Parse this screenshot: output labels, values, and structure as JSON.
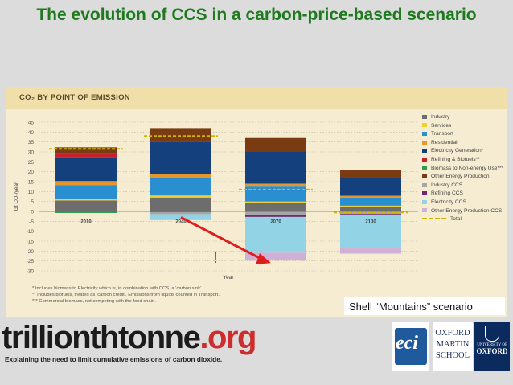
{
  "slide_title": "The evolution of CCS in a carbon-price-based scenario",
  "panel_title": "CO₂ BY POINT OF EMISSION",
  "caption": "Shell “Mountains” scenario",
  "brand": {
    "main": "trillionthtonne",
    "suffix": ".org",
    "tagline": "Explaining the need to limit cumulative emissions of carbon dioxide."
  },
  "logos": {
    "eci": "eci",
    "oxford_martin": [
      "OXFORD",
      "MARTIN",
      "SCHOOL"
    ],
    "oxford_uni": [
      "UNIVERSITY OF",
      "OXFORD"
    ]
  },
  "footnotes": [
    "* Includes biomass to Electricity which is, in combination with CCS, a ‘carbon sink’.",
    "** Includes biofuels, treated as ‘carbon credit’. Emissions from liquids counted in Transport.",
    "*** Commercial biomass, not competing with the food chain."
  ],
  "annotation": "!",
  "colors": {
    "Industry": "#6d6d6d",
    "Services": "#f1cf2f",
    "Transport": "#2a8fd0",
    "Residential": "#e5962d",
    "Electricity Generation*": "#14407d",
    "Refining & Biofuels**": "#c8202a",
    "Biomass to Non-energy Use***": "#2e9b4a",
    "Other Energy Production": "#7a3a12",
    "Industry CCS": "#a6a6a6",
    "Refining CCS": "#6e2a72",
    "Electricity CCS": "#93d3e6",
    "Other Energy Production CCS": "#cfb1d8",
    "Total": "#c9b800"
  },
  "chart_data": {
    "type": "bar",
    "title": "CO₂ BY POINT OF EMISSION",
    "xlabel": "Year",
    "ylabel": "Gt CO₂/year",
    "ylim": [
      -30,
      45
    ],
    "yticks": [
      45,
      40,
      35,
      30,
      25,
      20,
      15,
      10,
      5,
      0,
      -5,
      -10,
      -15,
      -20,
      -25,
      -30
    ],
    "grid": true,
    "legend_position": "right",
    "categories": [
      "2010",
      "2040",
      "2070",
      "2100"
    ],
    "series": [
      {
        "name": "Industry",
        "values": [
          5.5,
          7,
          4.5,
          2.5
        ]
      },
      {
        "name": "Services",
        "values": [
          0.8,
          1,
          0.5,
          0.4
        ]
      },
      {
        "name": "Transport",
        "values": [
          7,
          9,
          7.5,
          4
        ]
      },
      {
        "name": "Residential",
        "values": [
          2,
          2,
          1.5,
          1
        ]
      },
      {
        "name": "Electricity Generation*",
        "values": [
          12,
          16,
          16,
          9
        ]
      },
      {
        "name": "Refining & Biofuels**",
        "values": [
          2,
          0,
          0,
          0
        ]
      },
      {
        "name": "Biomass to Non-energy Use***",
        "values": [
          -0.8,
          -0.4,
          -0.3,
          -0.3
        ]
      },
      {
        "name": "Other Energy Production",
        "values": [
          3,
          7,
          7,
          4
        ]
      },
      {
        "name": "Industry CCS",
        "values": [
          0,
          -1,
          -1.5,
          -1
        ]
      },
      {
        "name": "Refining CCS",
        "values": [
          0,
          0,
          -1,
          -0.5
        ]
      },
      {
        "name": "Electricity CCS",
        "values": [
          0,
          -3,
          -18,
          -16.5
        ]
      },
      {
        "name": "Other Energy Production CCS",
        "values": [
          0,
          0,
          -4,
          -3
        ]
      },
      {
        "name": "Total",
        "values": [
          31.5,
          38,
          11,
          -0.5
        ]
      }
    ]
  }
}
